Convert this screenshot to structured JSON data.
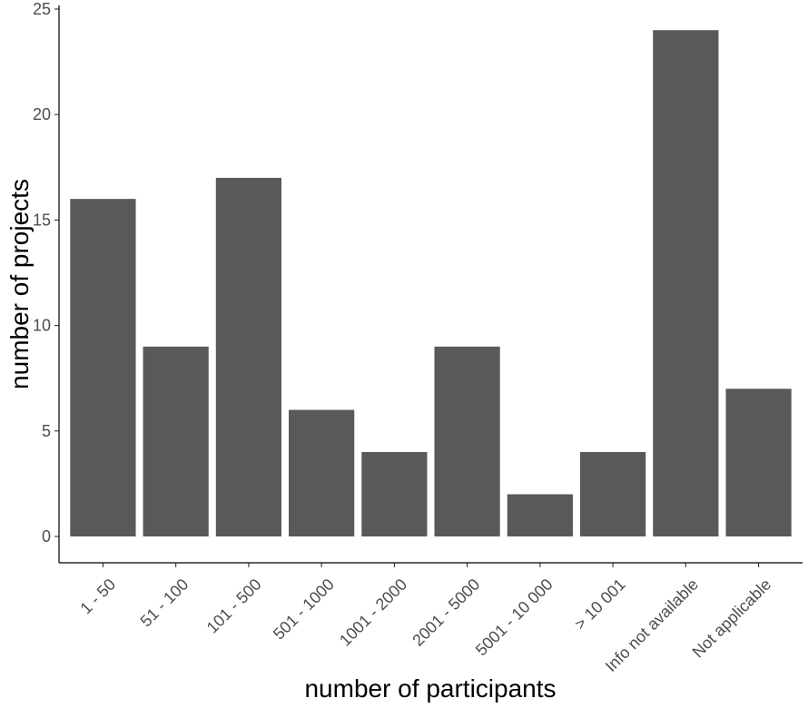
{
  "chart_data": {
    "type": "bar",
    "title": "",
    "xlabel": "number of participants",
    "ylabel": "number of projects",
    "categories": [
      "1 - 50",
      "51 - 100",
      "101 - 500",
      "501 - 1000",
      "1001 - 2000",
      "2001 - 5000",
      "5001 - 10 000",
      "> 10 001",
      "Info not available",
      "Not applicable"
    ],
    "values": [
      16,
      9,
      17,
      6,
      4,
      9,
      2,
      4,
      24,
      7
    ],
    "ylim": [
      0,
      25
    ],
    "yticks": [
      0,
      5,
      10,
      15,
      20,
      25
    ],
    "grid": false,
    "legend": "none",
    "colors": {
      "bar": "#595959",
      "axis": "#000000",
      "tick_text": "#4d4d4d"
    }
  }
}
